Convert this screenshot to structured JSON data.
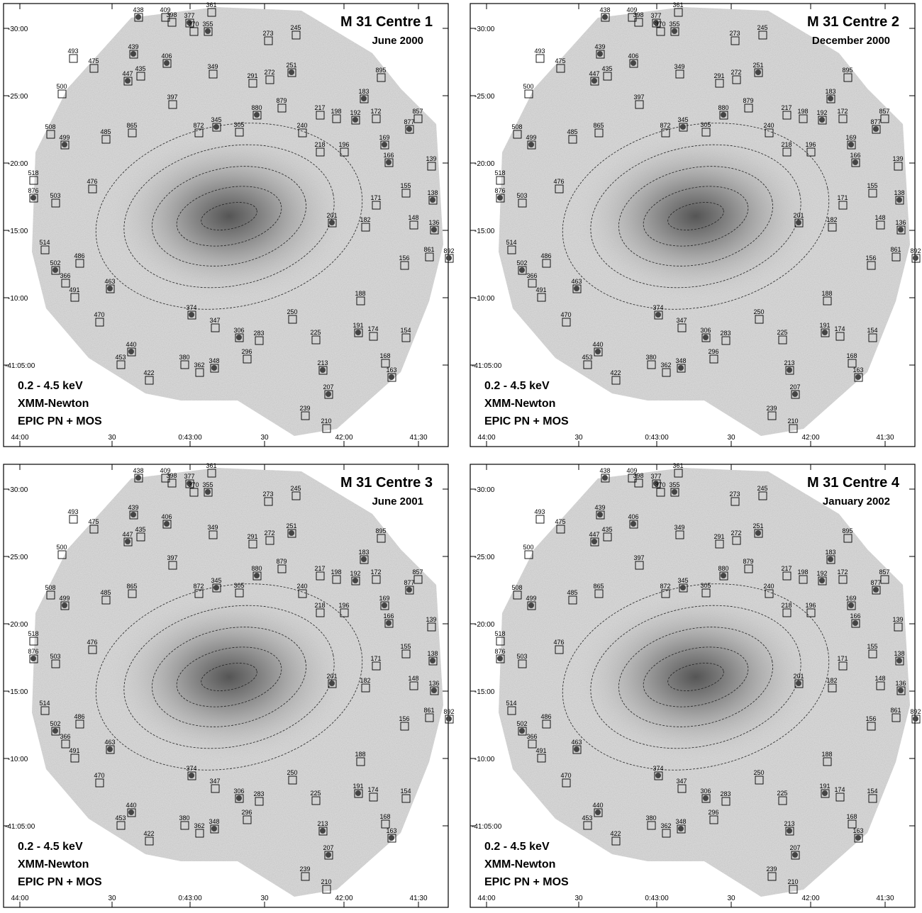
{
  "panels": [
    {
      "title": "M 31 Centre 1",
      "date": "June 2000"
    },
    {
      "title": "M 31 Centre 2",
      "date": "December 2000"
    },
    {
      "title": "M 31 Centre 3",
      "date": "June 2001"
    },
    {
      "title": "M 31 Centre 4",
      "date": "January 2002"
    }
  ],
  "band": "0.2 - 4.5 keV",
  "mission": "XMM-Newton",
  "instrument": "EPIC PN + MOS",
  "xticks": [
    "44:00",
    "30",
    "0:43:00",
    "30",
    "42:00",
    "41:30"
  ],
  "yticks": [
    "-30:00",
    "-25:00",
    "-20:00",
    "-15:00",
    "-10:00",
    "-41:05:00"
  ],
  "sources": [
    "438",
    "409",
    "398",
    "377",
    "361",
    "370",
    "355",
    "273",
    "245",
    "439",
    "493",
    "475",
    "406",
    "349",
    "272",
    "251",
    "291",
    "895",
    "447",
    "435",
    "500",
    "183",
    "397",
    "879",
    "880",
    "217",
    "198",
    "192",
    "172",
    "857",
    "877",
    "865",
    "508",
    "499",
    "485",
    "872",
    "345",
    "305",
    "240",
    "169",
    "218",
    "196",
    "166",
    "139",
    "518",
    "876",
    "476",
    "155",
    "138",
    "171",
    "503",
    "201",
    "182",
    "148",
    "136",
    "514",
    "861",
    "892",
    "156",
    "486",
    "502",
    "366",
    "491",
    "463",
    "188",
    "470",
    "374",
    "347",
    "250",
    "306",
    "283",
    "225",
    "191",
    "174",
    "154",
    "440",
    "380",
    "296",
    "348",
    "362",
    "453",
    "213",
    "168",
    "422",
    "163",
    "210",
    "239",
    "207"
  ]
}
